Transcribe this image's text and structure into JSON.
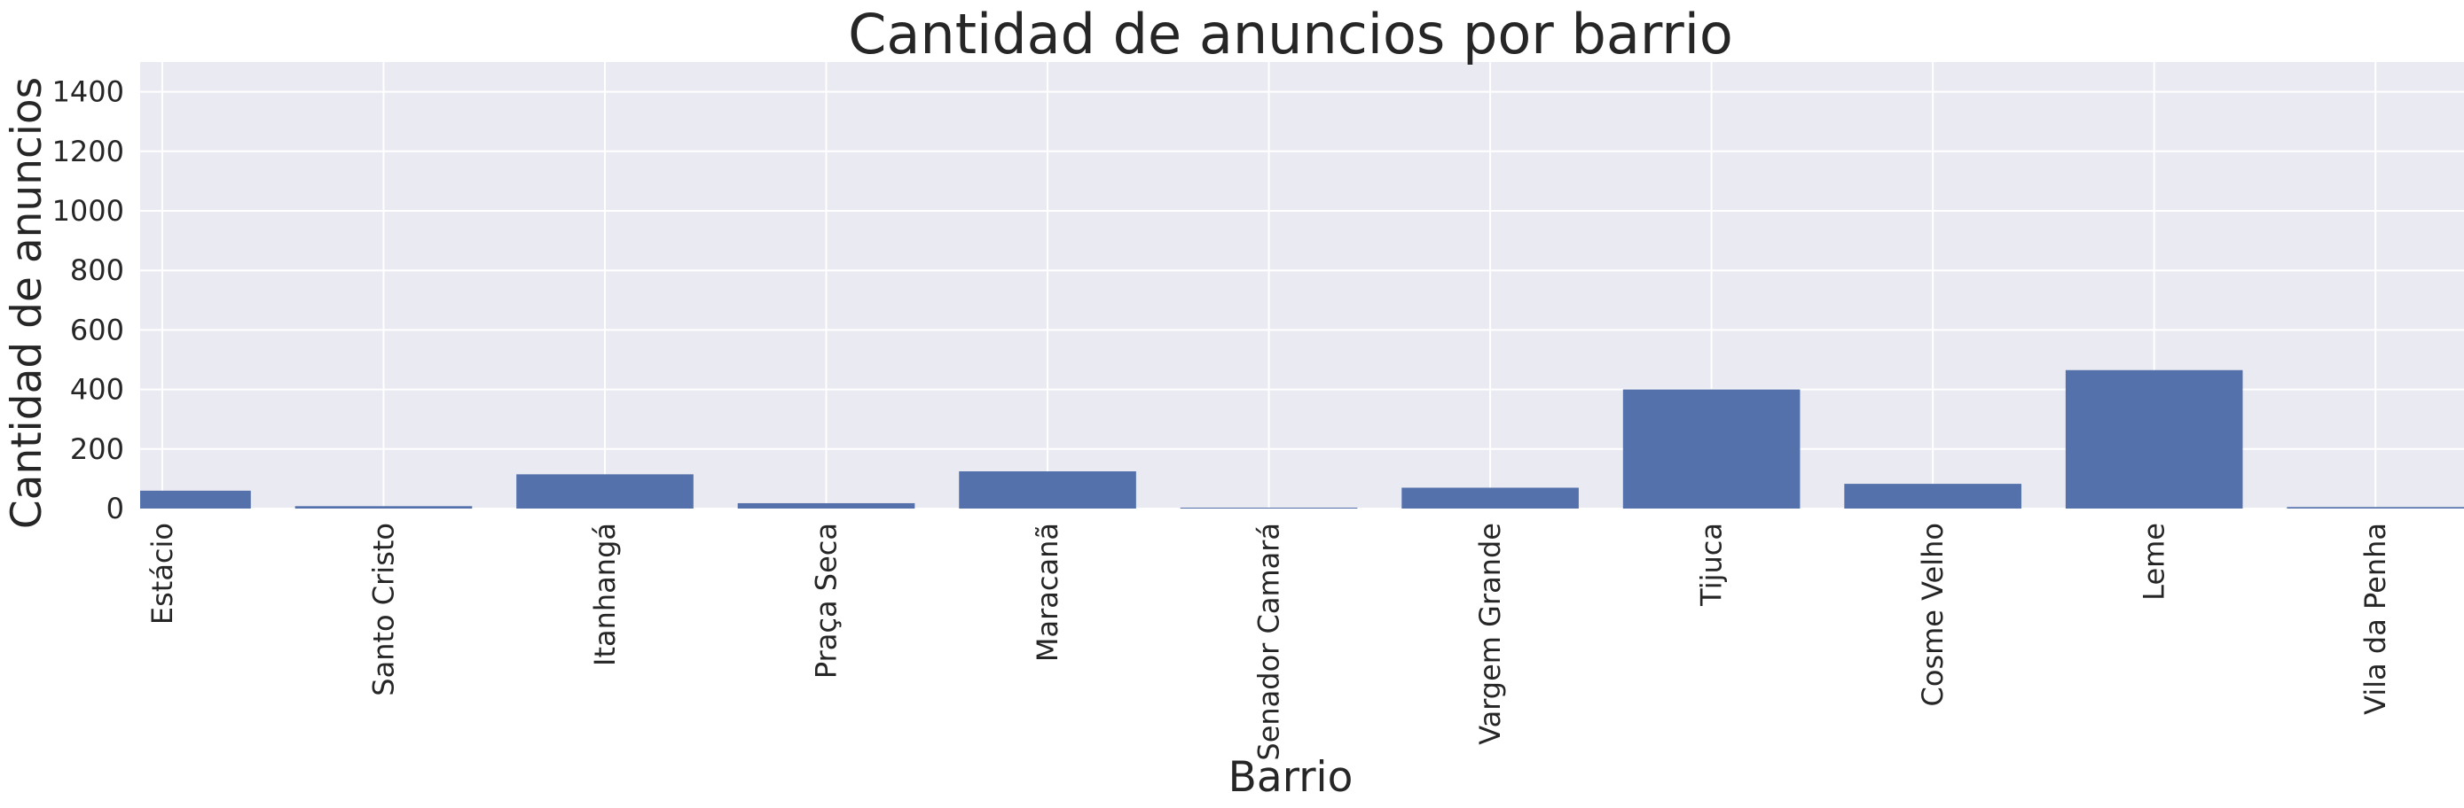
{
  "chart_data": {
    "type": "bar",
    "title": "Cantidad de anuncios por barrio",
    "xlabel": "Barrio",
    "ylabel": "Cantidad de anuncios",
    "categories": [
      "Estácio",
      "Santo Cristo",
      "Itanhangá",
      "Praça Seca",
      "Maracanã",
      "Senador Camará",
      "Vargem Grande",
      "Tijuca",
      "Cosme Velho",
      "Leme",
      "Vila da Penha"
    ],
    "values": [
      60,
      8,
      115,
      18,
      125,
      3,
      70,
      400,
      83,
      465,
      5
    ],
    "ylim": [
      0,
      1500
    ],
    "yticks": [
      0,
      200,
      400,
      600,
      800,
      1000,
      1200,
      1400
    ],
    "grid": true,
    "colors": {
      "bar": "#5471ab",
      "background": "#eaeaf2",
      "grid": "#ffffff",
      "text": "#262626"
    }
  }
}
